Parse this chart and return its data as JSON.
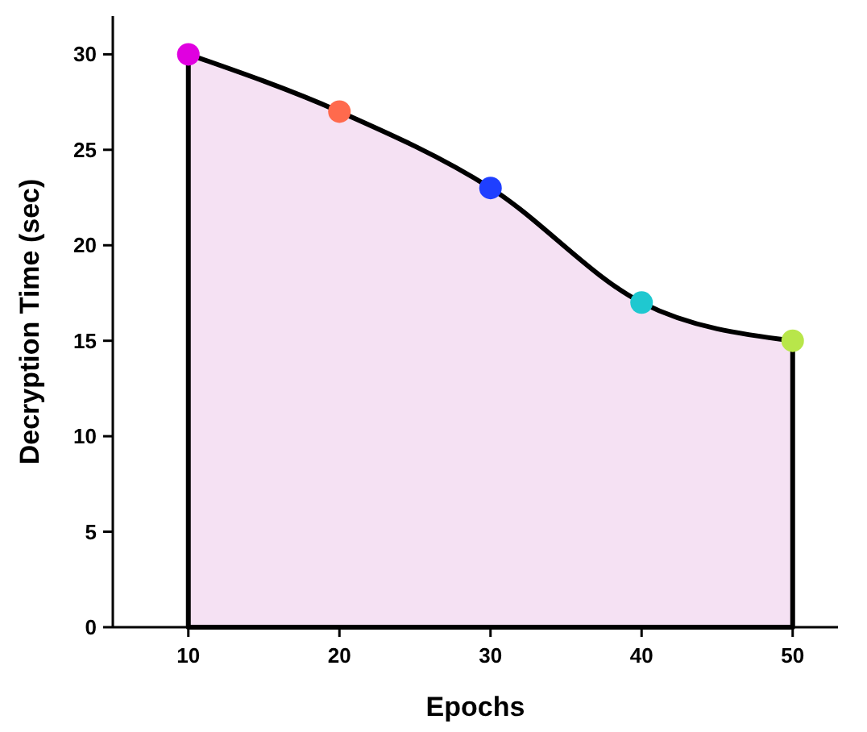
{
  "chart_data": {
    "type": "area",
    "xlabel": "Epochs",
    "ylabel": "Decryption Time (sec)",
    "x": [
      10,
      20,
      30,
      40,
      50
    ],
    "series": [
      {
        "color": "#f5e1f3",
        "values": [
          30,
          27,
          23,
          17,
          15
        ],
        "colors": [
          "#e000e0",
          "#ff6a4d",
          "#1f3fff",
          "#1fc8d0",
          "#b8e64a"
        ]
      }
    ],
    "xlim": [
      5,
      53
    ],
    "xticks": [
      10,
      20,
      30,
      40,
      50
    ],
    "ylim": [
      0,
      32
    ],
    "yticks": [
      0,
      5,
      10,
      15,
      20,
      25,
      30
    ],
    "marker": "circle",
    "grid": false
  }
}
